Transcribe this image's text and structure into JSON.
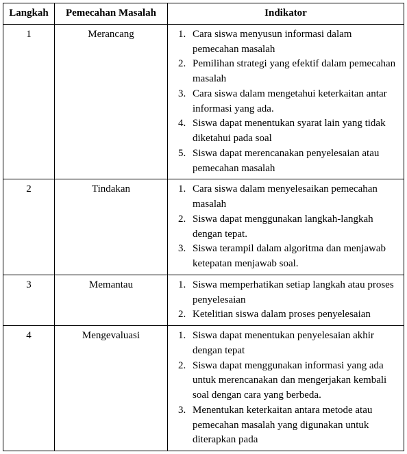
{
  "headers": {
    "step": "Langkah",
    "solve": "Pemecahan Masalah",
    "indicator": "Indikator"
  },
  "rows": [
    {
      "num": "1",
      "solve": "Merancang",
      "items": [
        "Cara siswa menyusun informasi dalam pemecahan masalah",
        "Pemilihan strategi yang efektif dalam pemecahan masalah",
        "Cara siswa dalam mengetahui keterkaitan antar informasi yang ada.",
        "Siswa dapat menentukan syarat lain yang tidak diketahui pada soal",
        "Siswa dapat merencanakan penyelesaian atau pemecahan masalah"
      ]
    },
    {
      "num": "2",
      "solve": "Tindakan",
      "items": [
        "Cara siswa dalam menyelesaikan pemecahan masalah",
        "Siswa dapat menggunakan langkah-langkah dengan tepat.",
        "Siswa terampil dalam algoritma dan menjawab ketepatan menjawab soal."
      ]
    },
    {
      "num": "3",
      "solve": "Memantau",
      "items": [
        "Siswa memperhatikan setiap langkah atau proses penyelesaian",
        "Ketelitian siswa dalam proses penyelesaian"
      ]
    },
    {
      "num": "4",
      "solve": "Mengevaluasi",
      "items": [
        "Siswa dapat menentukan penyelesaian akhir dengan tepat",
        "Siswa dapat menggunakan informasi yang ada untuk merencanakan dan mengerjakan kembali soal dengan cara yang berbeda.",
        "Menentukan keterkaitan antara metode atau pemecahan masalah yang digunakan untuk diterapkan pada"
      ]
    }
  ]
}
